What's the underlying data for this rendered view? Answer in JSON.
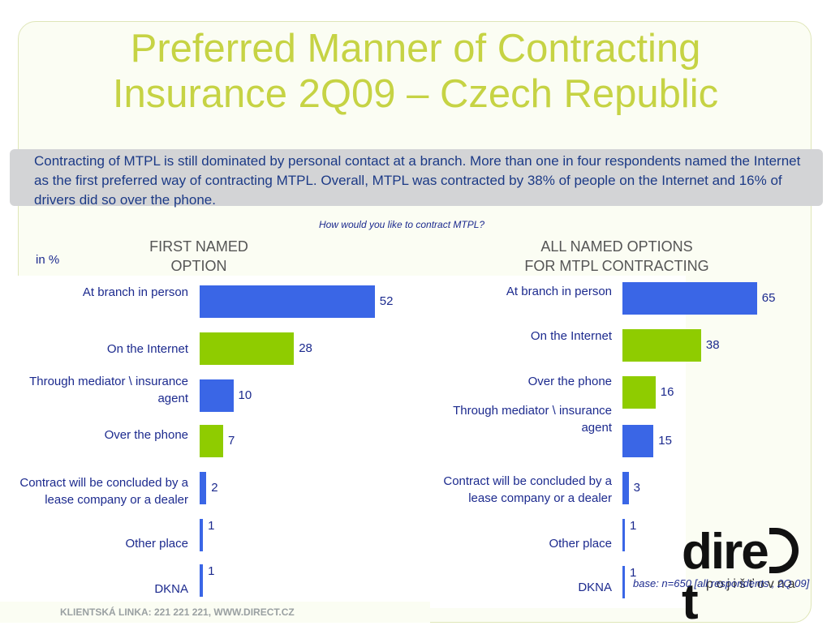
{
  "title_line1": "Preferred Manner of Contracting",
  "title_line2": "Insurance 2Q09 – Czech Republic",
  "summary": "Contracting of MTPL is still dominated by personal contact at a branch. More than one in four respondents named the Internet as the first preferred way of contracting MTPL. Overall, MTPL was contracted by 38% of people on the Internet and 16% of drivers did so over the phone.",
  "question": "How would you like to contract MTPL?",
  "unit": "in %",
  "footer": "KLIENTSKÁ LINKA: 221 221 221, WWW.DIRECT.CZ",
  "base_note": "base: n=650 [all respondents , 2Q 09]",
  "logo": {
    "main": "direct",
    "sub": "pojišťovna"
  },
  "colors": {
    "blue": "#3a66e6",
    "green": "#8fcc00",
    "title": "#c6d344",
    "text": "#1c2a8e"
  },
  "chart_data": [
    {
      "type": "bar",
      "orientation": "horizontal",
      "title_line1": "FIRST NAMED",
      "title_line2": "OPTION",
      "categories": [
        "At branch in person",
        "On the Internet",
        "Through mediator \\ insurance agent",
        "Over the phone",
        "Contract will be concluded by a lease company or a dealer",
        "Other place",
        "DKNA"
      ],
      "values": [
        52,
        28,
        10,
        7,
        2,
        1,
        1
      ],
      "colors": [
        "blue",
        "green",
        "blue",
        "green",
        "blue",
        "blue",
        "blue"
      ],
      "xlim": [
        0,
        65
      ]
    },
    {
      "type": "bar",
      "orientation": "horizontal",
      "title_line1": "ALL NAMED OPTIONS",
      "title_line2": "FOR MTPL CONTRACTING",
      "categories": [
        "At branch in person",
        "On the Internet",
        "Over the phone",
        "Through mediator \\ insurance agent",
        "Contract will be concluded by a lease company or a dealer",
        "Other place",
        "DKNA"
      ],
      "values": [
        65,
        38,
        16,
        15,
        3,
        1,
        1
      ],
      "colors": [
        "blue",
        "green",
        "green",
        "blue",
        "blue",
        "blue",
        "blue"
      ],
      "xlim": [
        0,
        65
      ]
    }
  ]
}
